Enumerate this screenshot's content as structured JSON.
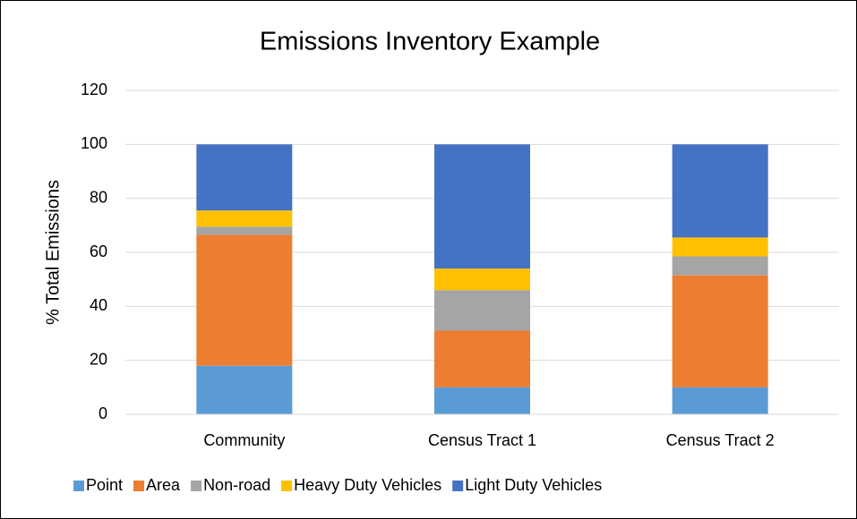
{
  "chart_data": {
    "type": "stacked_bar",
    "title": "Emissions Inventory Example",
    "y_label": "% Total Emissions",
    "categories": [
      "Community",
      "Census Tract 1",
      "Census Tract 2"
    ],
    "series": [
      {
        "name": "Point",
        "color": "#5b9bd5",
        "values": [
          18,
          10,
          10
        ]
      },
      {
        "name": "Area",
        "color": "#ed7d31",
        "values": [
          48.5,
          21,
          41.5
        ]
      },
      {
        "name": "Non-road",
        "color": "#a5a5a5",
        "values": [
          3,
          15,
          7
        ]
      },
      {
        "name": "Heavy Duty Vehicles",
        "color": "#ffc000",
        "values": [
          6,
          8,
          7
        ]
      },
      {
        "name": "Light Duty Vehicles",
        "color": "#4472c4",
        "values": [
          24.5,
          46,
          34.5
        ]
      }
    ],
    "ylim": [
      0,
      120
    ],
    "yticks": [
      0,
      20,
      40,
      60,
      80,
      100,
      120
    ],
    "grid": true,
    "legend": "bottom"
  }
}
